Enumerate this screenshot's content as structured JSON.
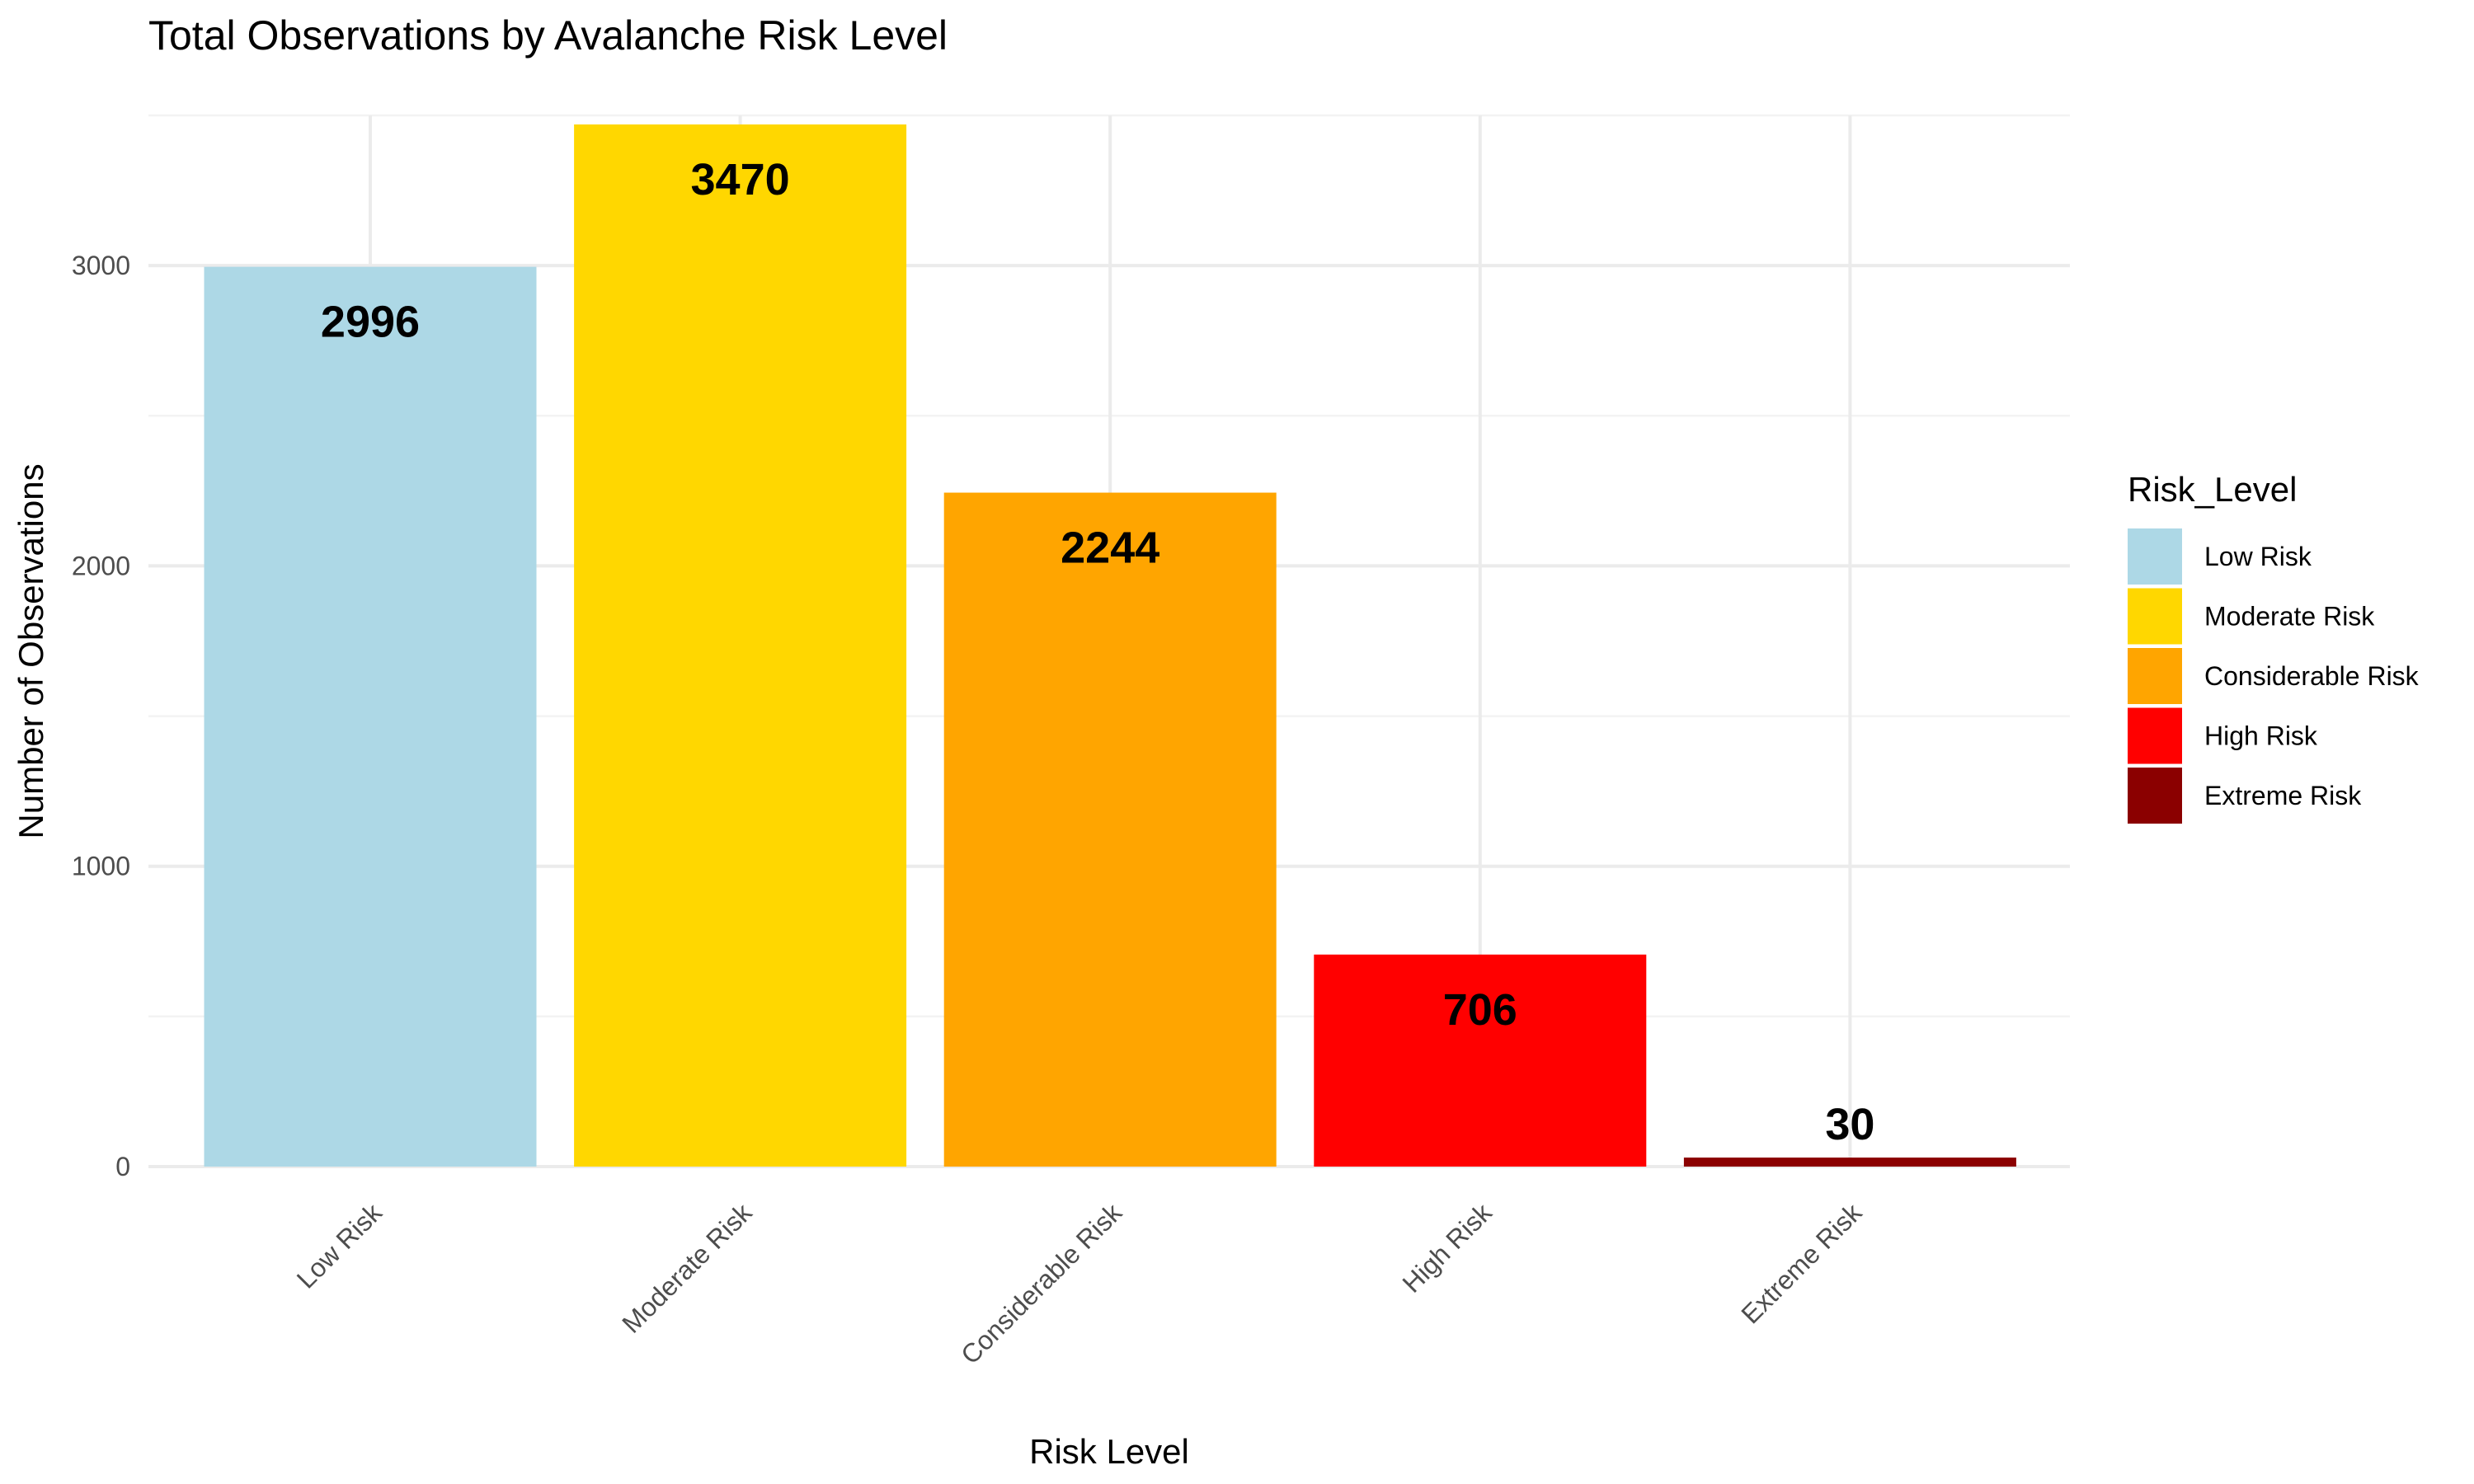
{
  "chart_data": {
    "type": "bar",
    "title": "Total Observations by Avalanche Risk Level",
    "xlabel": "Risk Level",
    "ylabel": "Number of Observations",
    "categories": [
      "Low Risk",
      "Moderate Risk",
      "Considerable Risk",
      "High Risk",
      "Extreme Risk"
    ],
    "values": [
      2996,
      3470,
      2244,
      706,
      30
    ],
    "colors": [
      "#add8e6",
      "#ffd700",
      "#ffa500",
      "#ff0000",
      "#8b0000"
    ],
    "data_labels": [
      "2996",
      "3470",
      "2244",
      "706",
      "30"
    ],
    "ylim": [
      0,
      3500
    ],
    "yticks": [
      0,
      1000,
      2000,
      3000
    ],
    "y_tick_labels": [
      "0",
      "1000",
      "2000",
      "3000"
    ],
    "grid": true,
    "legend": {
      "title": "Risk_Level",
      "position": "right",
      "entries": [
        "Low Risk",
        "Moderate Risk",
        "Considerable Risk",
        "High Risk",
        "Extreme Risk"
      ]
    }
  }
}
